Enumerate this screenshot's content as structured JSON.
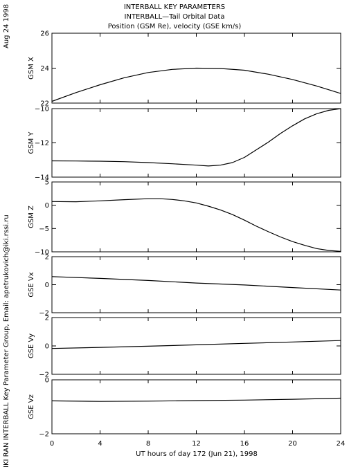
{
  "header": {
    "date_stamp": "Aug 24 1998",
    "title_lines": [
      "INTERBALL KEY PARAMETERS",
      "INTERBALL—Tail Orbital Data",
      "Position (GSM Re), velocity (GSE km/s)"
    ]
  },
  "footer": {
    "credit": "IKI RAN INTERBALL Key Parameter Group, Email: apetrukovich@iki.rssi.ru"
  },
  "chart_data": [
    {
      "type": "line",
      "ylabel": "GSM X",
      "ylim": [
        22,
        26
      ],
      "yticks": [
        22,
        24,
        26
      ],
      "series": [
        {
          "x": [
            0,
            2,
            4,
            6,
            8,
            10,
            12,
            14,
            16,
            18,
            20,
            22,
            24
          ],
          "values": [
            22.1,
            22.6,
            23.05,
            23.45,
            23.75,
            23.93,
            24.0,
            23.98,
            23.88,
            23.65,
            23.35,
            22.98,
            22.55
          ]
        }
      ]
    },
    {
      "type": "line",
      "ylabel": "GSM Y",
      "ylim": [
        -14,
        -10
      ],
      "yticks": [
        -14,
        -12,
        -10
      ],
      "series": [
        {
          "x": [
            0,
            2,
            4,
            6,
            8,
            10,
            12,
            13,
            14,
            15,
            16,
            17,
            18,
            19,
            20,
            21,
            22,
            23,
            24
          ],
          "values": [
            -13.05,
            -13.06,
            -13.07,
            -13.1,
            -13.15,
            -13.22,
            -13.3,
            -13.35,
            -13.3,
            -13.15,
            -12.85,
            -12.4,
            -11.95,
            -11.45,
            -11.0,
            -10.6,
            -10.3,
            -10.1,
            -10.0
          ]
        }
      ]
    },
    {
      "type": "line",
      "ylabel": "GSM Z",
      "ylim": [
        -10,
        5
      ],
      "yticks": [
        -10,
        -5,
        0,
        5
      ],
      "series": [
        {
          "x": [
            0,
            2,
            4,
            6,
            8,
            9,
            10,
            11,
            12,
            13,
            14,
            15,
            16,
            17,
            18,
            19,
            20,
            21,
            22,
            23,
            24
          ],
          "values": [
            0.8,
            0.75,
            0.95,
            1.2,
            1.4,
            1.4,
            1.25,
            0.95,
            0.5,
            -0.2,
            -1.0,
            -2.0,
            -3.2,
            -4.5,
            -5.7,
            -6.8,
            -7.8,
            -8.6,
            -9.3,
            -9.7,
            -9.9
          ]
        }
      ]
    },
    {
      "type": "line",
      "ylabel": "GSE Vx",
      "ylim": [
        -2,
        2
      ],
      "yticks": [
        -2,
        0,
        2
      ],
      "series": [
        {
          "x": [
            0,
            4,
            8,
            12,
            16,
            20,
            24
          ],
          "values": [
            0.58,
            0.45,
            0.3,
            0.12,
            -0.02,
            -0.2,
            -0.38
          ]
        }
      ]
    },
    {
      "type": "line",
      "ylabel": "GSE Vy",
      "ylim": [
        -2,
        2
      ],
      "yticks": [
        -2,
        0,
        2
      ],
      "series": [
        {
          "x": [
            0,
            4,
            8,
            12,
            16,
            20,
            24
          ],
          "values": [
            -0.18,
            -0.1,
            -0.02,
            0.08,
            0.18,
            0.28,
            0.38
          ]
        }
      ]
    },
    {
      "type": "line",
      "ylabel": "GSE Vz",
      "ylim": [
        -2,
        0
      ],
      "yticks": [
        -2,
        0
      ],
      "series": [
        {
          "x": [
            0,
            4,
            8,
            12,
            16,
            20,
            24
          ],
          "values": [
            -0.78,
            -0.8,
            -0.79,
            -0.77,
            -0.75,
            -0.72,
            -0.68
          ]
        }
      ]
    }
  ],
  "x_axis": {
    "label": "UT hours of day 172 (Jun 21), 1998",
    "xlim": [
      0,
      24
    ],
    "ticks": [
      0,
      4,
      8,
      12,
      16,
      20,
      24
    ]
  }
}
